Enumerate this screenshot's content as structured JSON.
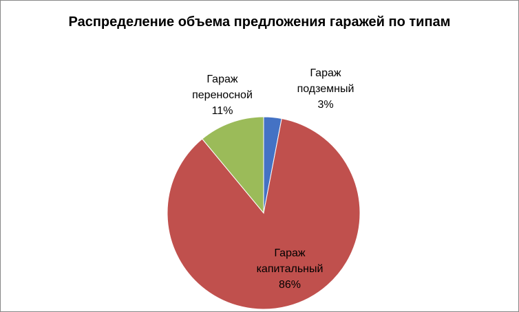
{
  "chart_data": {
    "type": "pie",
    "title": "Распределение объема предложения гаражей по типам",
    "slices": [
      {
        "label": "Гараж подземный",
        "value": 3,
        "value_label": "3%",
        "color": "#4472C4"
      },
      {
        "label": "Гараж капитальный",
        "value": 86,
        "value_label": "86%",
        "color": "#C0504D"
      },
      {
        "label": "Гараж переносной",
        "value": 11,
        "value_label": "11%",
        "color": "#9BBB59"
      }
    ],
    "legend": "none",
    "data_labels": "category name and percentage"
  }
}
